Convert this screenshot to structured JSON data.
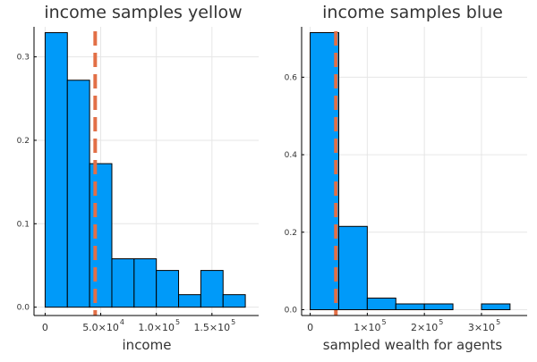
{
  "chart_data": [
    {
      "type": "bar",
      "title": "income samples yellow",
      "xlabel": "income",
      "ylabel": "",
      "xlim": [
        -10000,
        192000
      ],
      "ylim": [
        -0.01,
        0.336
      ],
      "bin_edges": [
        0,
        20000,
        40000,
        60000,
        80000,
        100000,
        120000,
        140000,
        160000,
        180000
      ],
      "values": [
        0.329,
        0.272,
        0.172,
        0.058,
        0.058,
        0.044,
        0.015,
        0.044,
        0.015
      ],
      "vline": 45000,
      "xticks": [
        {
          "value": 0,
          "label": "0",
          "exp": ""
        },
        {
          "value": 50000,
          "label": "5.0×10",
          "exp": "4"
        },
        {
          "value": 100000,
          "label": "1.0×10",
          "exp": "5"
        },
        {
          "value": 150000,
          "label": "1.5×10",
          "exp": "5"
        }
      ],
      "yticks": [
        {
          "value": 0.0,
          "label": "0.0"
        },
        {
          "value": 0.1,
          "label": "0.1"
        },
        {
          "value": 0.2,
          "label": "0.2"
        },
        {
          "value": 0.3,
          "label": "0.3"
        }
      ],
      "grid": true,
      "bar_color": "#009af9",
      "vline_color": "#e26f46"
    },
    {
      "type": "bar",
      "title": "income samples blue",
      "xlabel": "sampled wealth for agents",
      "ylabel": "",
      "xlim": [
        -15000,
        380000
      ],
      "ylim": [
        -0.015,
        0.73
      ],
      "bin_edges": [
        0,
        50000,
        100000,
        150000,
        200000,
        250000,
        300000,
        350000
      ],
      "values": [
        0.715,
        0.215,
        0.03,
        0.015,
        0.015,
        0.0,
        0.015
      ],
      "vline": 45000,
      "xticks": [
        {
          "value": 0,
          "label": "0",
          "exp": ""
        },
        {
          "value": 100000,
          "label": "1×10",
          "exp": "5"
        },
        {
          "value": 200000,
          "label": "2×10",
          "exp": "5"
        },
        {
          "value": 300000,
          "label": "3×10",
          "exp": "5"
        }
      ],
      "yticks": [
        {
          "value": 0.0,
          "label": "0.0"
        },
        {
          "value": 0.2,
          "label": "0.2"
        },
        {
          "value": 0.4,
          "label": "0.4"
        },
        {
          "value": 0.6,
          "label": "0.6"
        }
      ],
      "grid": true,
      "bar_color": "#009af9",
      "vline_color": "#e26f46"
    }
  ]
}
